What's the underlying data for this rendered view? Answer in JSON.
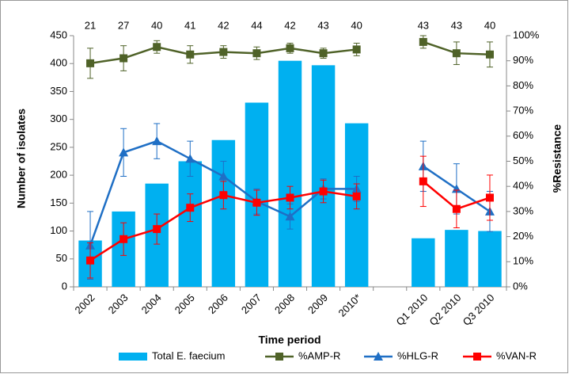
{
  "chart_data": {
    "type": "bar",
    "categories": [
      "2002",
      "2003",
      "2004",
      "2005",
      "2006",
      "2007",
      "2008",
      "2009",
      "2010*",
      null,
      "Q1 2010",
      "Q2 2010",
      "Q3 2010"
    ],
    "top_labels": [
      21,
      27,
      40,
      41,
      42,
      44,
      42,
      43,
      40,
      null,
      43,
      43,
      40
    ],
    "x_label": "Time period",
    "y_label": "Number of isolates",
    "y2_label": "%Resistance",
    "ylim": [
      0,
      450
    ],
    "yticks": [
      0,
      50,
      100,
      150,
      200,
      250,
      300,
      350,
      400,
      450
    ],
    "y2lim": [
      0,
      100
    ],
    "y2ticks": [
      {
        "value": 0,
        "label": "0%"
      },
      {
        "value": 10,
        "label": "10%"
      },
      {
        "value": 20,
        "label": "20%"
      },
      {
        "value": 30,
        "label": "30%"
      },
      {
        "value": 40,
        "label": "40%"
      },
      {
        "value": 50,
        "label": "50%"
      },
      {
        "value": 60,
        "label": "60%"
      },
      {
        "value": 70,
        "label": "70%"
      },
      {
        "value": 80,
        "label": "80%"
      },
      {
        "value": 90,
        "label": "90%"
      },
      {
        "value": 100,
        "label": "100%"
      }
    ],
    "grid": false,
    "legend": "bottom",
    "series": [
      {
        "name": "Total E. faecium",
        "type": "bar",
        "color": "#00b0f0",
        "values": [
          83,
          135,
          185,
          225,
          263,
          330,
          405,
          397,
          293,
          null,
          87,
          102,
          100
        ]
      },
      {
        "name": "%AMP-R",
        "type": "line",
        "axis": "y2",
        "color": "#4f6228",
        "marker": "square",
        "values": [
          89,
          91,
          95.5,
          92.5,
          93.5,
          93,
          95,
          93,
          94.5,
          null,
          97.5,
          93,
          92.5
        ],
        "errors": [
          6,
          5,
          2.5,
          3.5,
          2.5,
          2.5,
          2,
          2,
          2.5,
          null,
          2.5,
          4.5,
          5
        ]
      },
      {
        "name": "%HLG-R",
        "type": "line",
        "axis": "y2",
        "color": "#1f6fc5",
        "marker": "triangle",
        "values": [
          16.5,
          53.5,
          58,
          51,
          44,
          34,
          28,
          39,
          39,
          null,
          48,
          39,
          30
        ],
        "errors": [
          13.5,
          9.5,
          7,
          7,
          6,
          5,
          5,
          4,
          5,
          null,
          10,
          10,
          8
        ]
      },
      {
        "name": "%VAN-R",
        "type": "line",
        "axis": "y2",
        "color": "#ff0000",
        "marker": "square",
        "values": [
          10.5,
          19,
          23,
          31.5,
          36.5,
          33.5,
          35.5,
          38,
          36,
          null,
          42,
          31,
          35.5
        ],
        "errors": [
          7,
          6.5,
          6,
          5.5,
          5.5,
          5,
          4.5,
          4.5,
          5,
          null,
          10,
          7.5,
          9
        ]
      }
    ]
  }
}
